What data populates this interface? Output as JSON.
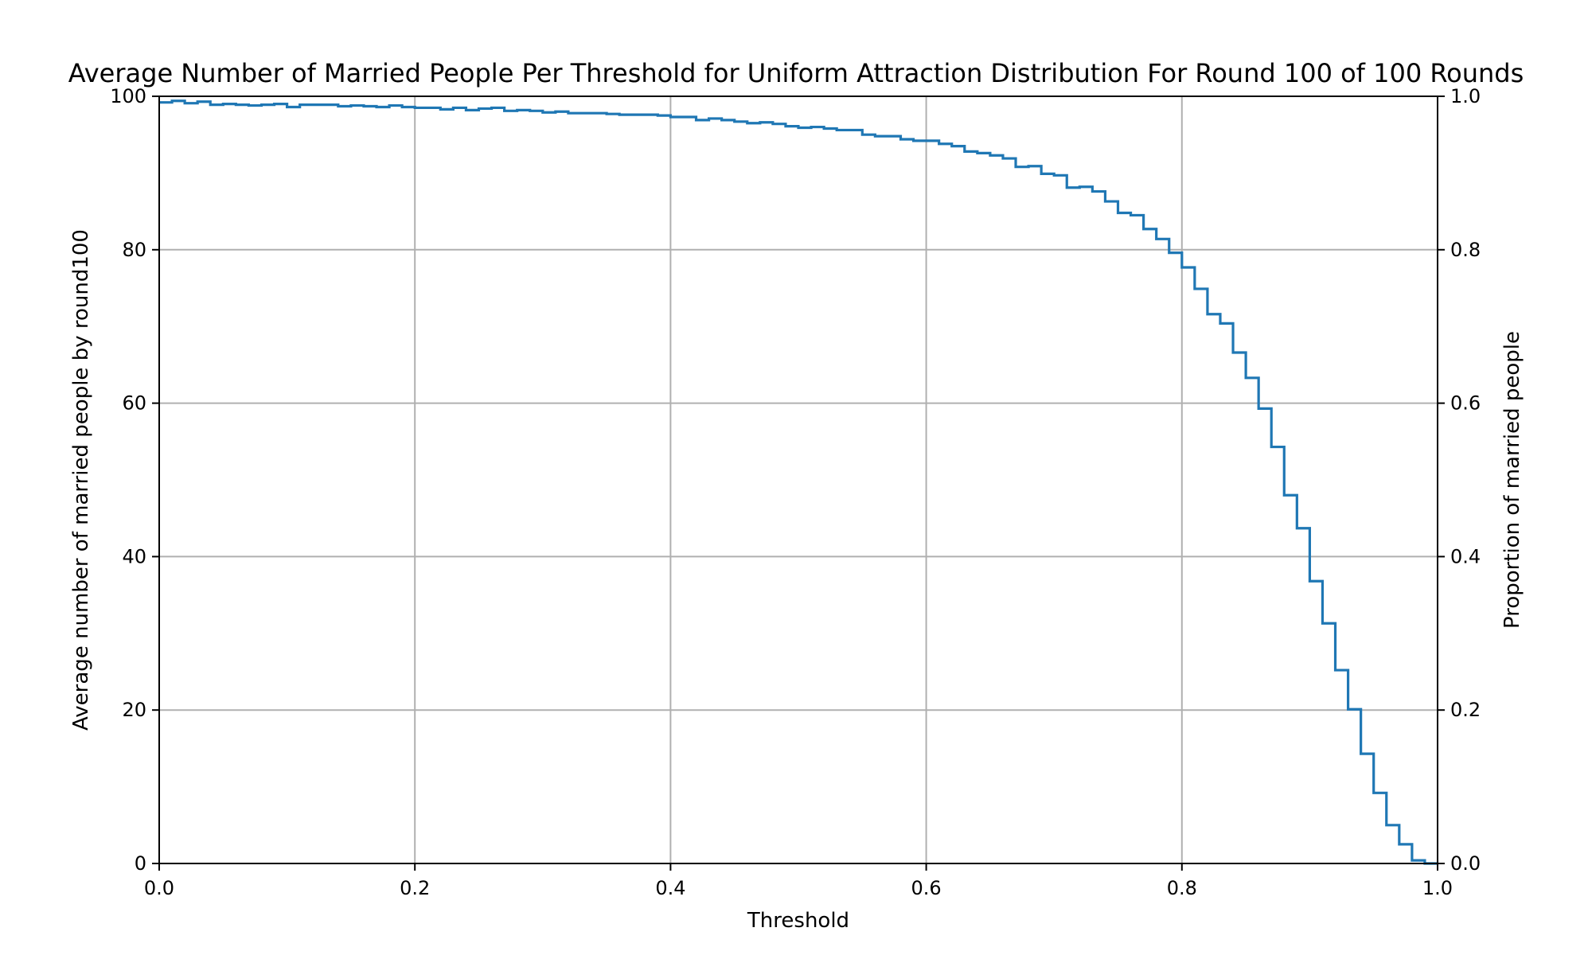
{
  "chart_data": {
    "type": "line",
    "step": "post",
    "title": "Average Number of Married People Per Threshold for Uniform Attraction Distribution For Round 100 of 100 Rounds",
    "xlabel": "Threshold",
    "ylabel": "Average number of married people by round100",
    "ylabel_right": "Proportion of married people",
    "xlim": [
      0.0,
      1.0
    ],
    "ylim": [
      0,
      100
    ],
    "ylim_right": [
      0.0,
      1.0
    ],
    "xticks": [
      "0.0",
      "0.2",
      "0.4",
      "0.6",
      "0.8",
      "1.0"
    ],
    "yticks": [
      "0",
      "20",
      "40",
      "60",
      "80",
      "100"
    ],
    "yticks_right": [
      "0.0",
      "0.2",
      "0.4",
      "0.6",
      "0.8",
      "1.0"
    ],
    "grid": true,
    "line_color": "#1f77b4",
    "grid_color": "#b0b0b0",
    "series": [
      {
        "x": [
          0.0,
          0.01,
          0.02,
          0.03,
          0.04,
          0.05,
          0.06,
          0.07,
          0.08,
          0.09,
          0.1,
          0.11,
          0.12,
          0.13,
          0.14,
          0.15,
          0.16,
          0.17,
          0.18,
          0.19,
          0.2,
          0.21,
          0.22,
          0.23,
          0.24,
          0.25,
          0.26,
          0.27,
          0.28,
          0.29,
          0.3,
          0.31,
          0.32,
          0.33,
          0.34,
          0.35,
          0.36,
          0.37,
          0.38,
          0.39,
          0.4,
          0.41,
          0.42,
          0.43,
          0.44,
          0.45,
          0.46,
          0.47,
          0.48,
          0.49,
          0.5,
          0.51,
          0.52,
          0.53,
          0.54,
          0.55,
          0.56,
          0.57,
          0.58,
          0.59,
          0.6,
          0.61,
          0.62,
          0.63,
          0.64,
          0.65,
          0.66,
          0.67,
          0.68,
          0.69,
          0.7,
          0.71,
          0.72,
          0.73,
          0.74,
          0.75,
          0.76,
          0.77,
          0.78,
          0.79,
          0.8,
          0.81,
          0.82,
          0.83,
          0.84,
          0.85,
          0.86,
          0.87,
          0.88,
          0.89,
          0.9,
          0.91,
          0.92,
          0.93,
          0.94,
          0.95,
          0.96,
          0.97,
          0.98,
          0.99
        ],
        "y": [
          99.2,
          99.4,
          99.1,
          99.3,
          98.9,
          99.0,
          98.9,
          98.8,
          98.9,
          99.0,
          98.6,
          98.9,
          98.9,
          98.9,
          98.7,
          98.8,
          98.7,
          98.6,
          98.8,
          98.6,
          98.5,
          98.5,
          98.3,
          98.5,
          98.2,
          98.4,
          98.5,
          98.1,
          98.2,
          98.1,
          97.9,
          98.0,
          97.8,
          97.8,
          97.8,
          97.7,
          97.6,
          97.6,
          97.6,
          97.5,
          97.3,
          97.3,
          96.9,
          97.1,
          96.9,
          96.7,
          96.5,
          96.6,
          96.4,
          96.1,
          95.9,
          96.0,
          95.8,
          95.6,
          95.6,
          95.0,
          94.8,
          94.8,
          94.4,
          94.2,
          94.2,
          93.8,
          93.5,
          92.8,
          92.6,
          92.3,
          91.9,
          90.8,
          90.9,
          89.9,
          89.7,
          88.1,
          88.2,
          87.6,
          86.3,
          84.8,
          84.5,
          82.7,
          81.4,
          79.6,
          77.7,
          74.9,
          71.6,
          70.4,
          66.6,
          63.3,
          59.3,
          54.3,
          48.0,
          43.7,
          36.8,
          31.3,
          25.2,
          20.1,
          14.3,
          9.2,
          5.0,
          2.5,
          0.4,
          0.0
        ]
      }
    ]
  }
}
